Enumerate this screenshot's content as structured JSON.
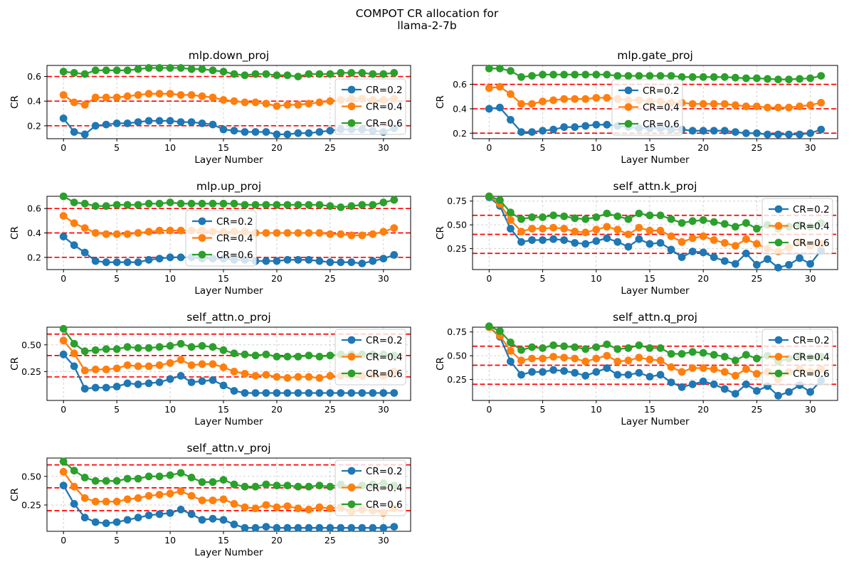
{
  "figure": {
    "title_line1": "COMPOT CR allocation for",
    "title_line2": "llama-2-7b"
  },
  "chart_data": {
    "type": "line",
    "shared": {
      "xlabel": "Layer Number",
      "ylabel": "CR",
      "x_start": 0,
      "x_end": 31,
      "xticks": [
        0,
        5,
        10,
        15,
        20,
        25,
        30
      ],
      "xlim": [
        -1.55,
        32.55
      ],
      "threshold_lines": [
        0.2,
        0.4,
        0.6
      ],
      "threshold_color": "#ff0000",
      "grid_color": "#c9c9c9",
      "grid_on": true,
      "legend_labels": [
        "CR=0.2",
        "CR=0.4",
        "CR=0.6"
      ],
      "series_colors": [
        "#1f77b4",
        "#ff7f0e",
        "#2ca02c"
      ]
    },
    "charts": [
      {
        "title": "mlp.down_proj",
        "col": "left",
        "legend_pos": "center-right",
        "ylim": [
          0.095,
          0.69
        ],
        "ytick_values": [
          0.2,
          0.4,
          0.6
        ],
        "ytick_labels": [
          "0.2",
          "0.4",
          "0.6"
        ],
        "series": [
          {
            "name": "CR=0.2",
            "color": "#1f77b4",
            "values": [
              0.26,
              0.15,
              0.13,
              0.2,
              0.21,
              0.22,
              0.22,
              0.23,
              0.24,
              0.24,
              0.24,
              0.23,
              0.23,
              0.22,
              0.21,
              0.17,
              0.16,
              0.15,
              0.15,
              0.15,
              0.13,
              0.13,
              0.14,
              0.14,
              0.15,
              0.16,
              0.17,
              0.17,
              0.17,
              0.16,
              0.15,
              0.18
            ]
          },
          {
            "name": "CR=0.4",
            "color": "#ff7f0e",
            "values": [
              0.45,
              0.39,
              0.37,
              0.43,
              0.43,
              0.43,
              0.44,
              0.45,
              0.46,
              0.46,
              0.46,
              0.45,
              0.45,
              0.44,
              0.43,
              0.41,
              0.4,
              0.39,
              0.39,
              0.38,
              0.36,
              0.37,
              0.37,
              0.38,
              0.39,
              0.4,
              0.41,
              0.42,
              0.42,
              0.41,
              0.41,
              0.42
            ]
          },
          {
            "name": "CR=0.6",
            "color": "#2ca02c",
            "values": [
              0.64,
              0.63,
              0.62,
              0.65,
              0.65,
              0.65,
              0.65,
              0.66,
              0.67,
              0.67,
              0.67,
              0.67,
              0.66,
              0.66,
              0.65,
              0.64,
              0.62,
              0.61,
              0.62,
              0.62,
              0.61,
              0.61,
              0.6,
              0.62,
              0.62,
              0.62,
              0.63,
              0.63,
              0.63,
              0.62,
              0.62,
              0.63
            ]
          }
        ]
      },
      {
        "title": "mlp.gate_proj",
        "col": "right",
        "legend_pos": "upper-center",
        "ylim": [
          0.155,
          0.755
        ],
        "ytick_values": [
          0.2,
          0.4,
          0.6
        ],
        "ytick_labels": [
          "0.2",
          "0.4",
          "0.6"
        ],
        "series": [
          {
            "name": "CR=0.2",
            "color": "#1f77b4",
            "values": [
              0.4,
              0.41,
              0.31,
              0.21,
              0.21,
              0.22,
              0.23,
              0.25,
              0.25,
              0.26,
              0.27,
              0.27,
              0.26,
              0.25,
              0.24,
              0.24,
              0.24,
              0.23,
              0.23,
              0.22,
              0.22,
              0.22,
              0.22,
              0.21,
              0.2,
              0.2,
              0.19,
              0.19,
              0.19,
              0.19,
              0.2,
              0.23
            ]
          },
          {
            "name": "CR=0.4",
            "color": "#ff7f0e",
            "values": [
              0.57,
              0.58,
              0.52,
              0.44,
              0.44,
              0.46,
              0.47,
              0.48,
              0.48,
              0.48,
              0.49,
              0.49,
              0.48,
              0.47,
              0.47,
              0.46,
              0.46,
              0.45,
              0.45,
              0.44,
              0.44,
              0.44,
              0.44,
              0.43,
              0.42,
              0.42,
              0.41,
              0.41,
              0.41,
              0.42,
              0.43,
              0.45
            ]
          },
          {
            "name": "CR=0.6",
            "color": "#2ca02c",
            "values": [
              0.73,
              0.73,
              0.71,
              0.66,
              0.67,
              0.68,
              0.68,
              0.68,
              0.68,
              0.68,
              0.68,
              0.68,
              0.67,
              0.67,
              0.67,
              0.67,
              0.67,
              0.67,
              0.66,
              0.66,
              0.66,
              0.66,
              0.66,
              0.655,
              0.65,
              0.65,
              0.645,
              0.64,
              0.64,
              0.645,
              0.65,
              0.67
            ]
          }
        ]
      },
      {
        "title": "mlp.up_proj",
        "col": "left",
        "legend_pos": "upper-center",
        "ylim": [
          0.1,
          0.7
        ],
        "ytick_values": [
          0.2,
          0.4,
          0.6
        ],
        "ytick_labels": [
          "0.2",
          "0.4",
          "0.6"
        ],
        "series": [
          {
            "name": "CR=0.2",
            "color": "#1f77b4",
            "values": [
              0.37,
              0.3,
              0.24,
              0.17,
              0.16,
              0.16,
              0.16,
              0.16,
              0.18,
              0.19,
              0.2,
              0.2,
              0.2,
              0.19,
              0.19,
              0.19,
              0.18,
              0.18,
              0.17,
              0.17,
              0.17,
              0.18,
              0.18,
              0.18,
              0.17,
              0.16,
              0.16,
              0.16,
              0.15,
              0.17,
              0.19,
              0.22
            ]
          },
          {
            "name": "CR=0.4",
            "color": "#ff7f0e",
            "values": [
              0.54,
              0.48,
              0.44,
              0.4,
              0.39,
              0.39,
              0.39,
              0.4,
              0.41,
              0.42,
              0.42,
              0.42,
              0.42,
              0.42,
              0.41,
              0.41,
              0.41,
              0.41,
              0.4,
              0.4,
              0.4,
              0.4,
              0.4,
              0.4,
              0.4,
              0.39,
              0.39,
              0.38,
              0.38,
              0.39,
              0.41,
              0.44
            ]
          },
          {
            "name": "CR=0.6",
            "color": "#2ca02c",
            "values": [
              0.7,
              0.65,
              0.64,
              0.62,
              0.62,
              0.63,
              0.63,
              0.63,
              0.64,
              0.64,
              0.65,
              0.64,
              0.64,
              0.64,
              0.64,
              0.64,
              0.64,
              0.63,
              0.63,
              0.63,
              0.63,
              0.63,
              0.63,
              0.63,
              0.63,
              0.62,
              0.61,
              0.62,
              0.63,
              0.63,
              0.65,
              0.67
            ]
          }
        ]
      },
      {
        "title": "self_attn.k_proj",
        "col": "right",
        "legend_pos": "upper-right",
        "ylim": [
          0.03,
          0.8
        ],
        "ytick_values": [
          0.25,
          0.5,
          0.75
        ],
        "ytick_labels": [
          "0.25",
          "0.50",
          "0.75"
        ],
        "series": [
          {
            "name": "CR=0.2",
            "color": "#1f77b4",
            "values": [
              0.79,
              0.7,
              0.46,
              0.32,
              0.34,
              0.34,
              0.35,
              0.34,
              0.31,
              0.3,
              0.33,
              0.36,
              0.32,
              0.27,
              0.35,
              0.3,
              0.31,
              0.24,
              0.16,
              0.22,
              0.21,
              0.16,
              0.12,
              0.09,
              0.2,
              0.08,
              0.14,
              0.05,
              0.08,
              0.15,
              0.09,
              0.23
            ]
          },
          {
            "name": "CR=0.4",
            "color": "#ff7f0e",
            "values": [
              0.8,
              0.72,
              0.55,
              0.43,
              0.46,
              0.46,
              0.47,
              0.46,
              0.43,
              0.42,
              0.45,
              0.48,
              0.45,
              0.4,
              0.47,
              0.44,
              0.44,
              0.38,
              0.32,
              0.36,
              0.38,
              0.34,
              0.31,
              0.28,
              0.35,
              0.3,
              0.25,
              0.22,
              0.26,
              0.32,
              0.28,
              0.3
            ]
          },
          {
            "name": "CR=0.6",
            "color": "#2ca02c",
            "values": [
              0.8,
              0.76,
              0.63,
              0.56,
              0.58,
              0.58,
              0.6,
              0.59,
              0.57,
              0.56,
              0.58,
              0.62,
              0.59,
              0.56,
              0.62,
              0.6,
              0.6,
              0.56,
              0.52,
              0.54,
              0.55,
              0.53,
              0.51,
              0.48,
              0.52,
              0.46,
              0.5,
              0.46,
              0.48,
              0.5,
              0.48,
              0.52
            ]
          }
        ]
      },
      {
        "title": "self_attn.o_proj",
        "col": "left",
        "legend_pos": "upper-right",
        "ylim": [
          -0.02,
          0.665
        ],
        "ytick_values": [
          0.25,
          0.5
        ],
        "ytick_labels": [
          "0.25",
          "0.50"
        ],
        "series": [
          {
            "name": "CR=0.2",
            "color": "#1f77b4",
            "values": [
              0.41,
              0.3,
              0.09,
              0.1,
              0.1,
              0.11,
              0.14,
              0.13,
              0.14,
              0.15,
              0.18,
              0.21,
              0.15,
              0.16,
              0.17,
              0.12,
              0.07,
              0.05,
              0.05,
              0.05,
              0.05,
              0.05,
              0.05,
              0.05,
              0.05,
              0.05,
              0.05,
              0.05,
              0.05,
              0.05,
              0.05,
              0.05
            ]
          },
          {
            "name": "CR=0.4",
            "color": "#ff7f0e",
            "values": [
              0.54,
              0.42,
              0.26,
              0.27,
              0.27,
              0.28,
              0.31,
              0.3,
              0.3,
              0.31,
              0.33,
              0.36,
              0.31,
              0.32,
              0.32,
              0.29,
              0.25,
              0.23,
              0.21,
              0.22,
              0.2,
              0.19,
              0.2,
              0.2,
              0.19,
              0.21,
              0.21,
              0.21,
              0.21,
              0.22,
              0.21,
              0.25
            ]
          },
          {
            "name": "CR=0.6",
            "color": "#2ca02c",
            "values": [
              0.65,
              0.51,
              0.44,
              0.45,
              0.46,
              0.46,
              0.48,
              0.47,
              0.47,
              0.48,
              0.49,
              0.51,
              0.48,
              0.49,
              0.48,
              0.45,
              0.42,
              0.41,
              0.4,
              0.41,
              0.39,
              0.39,
              0.39,
              0.4,
              0.39,
              0.4,
              0.41,
              0.41,
              0.41,
              0.41,
              0.41,
              0.4
            ]
          }
        ]
      },
      {
        "title": "self_attn.q_proj",
        "col": "right",
        "legend_pos": "upper-right",
        "ylim": [
          0.03,
          0.8
        ],
        "ytick_values": [
          0.25,
          0.5,
          0.75
        ],
        "ytick_labels": [
          "0.25",
          "0.50",
          "0.75"
        ],
        "series": [
          {
            "name": "CR=0.2",
            "color": "#1f77b4",
            "values": [
              0.8,
              0.7,
              0.44,
              0.3,
              0.33,
              0.33,
              0.35,
              0.34,
              0.32,
              0.29,
              0.33,
              0.37,
              0.3,
              0.3,
              0.32,
              0.28,
              0.3,
              0.22,
              0.17,
              0.2,
              0.23,
              0.2,
              0.15,
              0.1,
              0.2,
              0.13,
              0.18,
              0.08,
              0.12,
              0.19,
              0.12,
              0.24
            ]
          },
          {
            "name": "CR=0.4",
            "color": "#ff7f0e",
            "values": [
              0.8,
              0.71,
              0.55,
              0.45,
              0.47,
              0.47,
              0.49,
              0.48,
              0.47,
              0.44,
              0.47,
              0.5,
              0.44,
              0.45,
              0.48,
              0.46,
              0.45,
              0.38,
              0.33,
              0.37,
              0.37,
              0.36,
              0.33,
              0.29,
              0.36,
              0.31,
              0.33,
              0.25,
              0.33,
              0.36,
              0.33,
              0.36
            ]
          },
          {
            "name": "CR=0.6",
            "color": "#2ca02c",
            "values": [
              0.81,
              0.76,
              0.64,
              0.56,
              0.59,
              0.58,
              0.61,
              0.6,
              0.59,
              0.57,
              0.59,
              0.62,
              0.57,
              0.58,
              0.61,
              0.58,
              0.58,
              0.52,
              0.52,
              0.54,
              0.53,
              0.51,
              0.49,
              0.45,
              0.51,
              0.47,
              0.5,
              0.44,
              0.47,
              0.5,
              0.48,
              0.49
            ]
          }
        ]
      },
      {
        "title": "self_attn.v_proj",
        "col": "left",
        "legend_pos": "upper-right",
        "ylim": [
          0.02,
          0.66
        ],
        "ytick_values": [
          0.25,
          0.5
        ],
        "ytick_labels": [
          "0.25",
          "0.50"
        ],
        "series": [
          {
            "name": "CR=0.2",
            "color": "#1f77b4",
            "values": [
              0.42,
              0.26,
              0.14,
              0.1,
              0.09,
              0.1,
              0.12,
              0.14,
              0.16,
              0.17,
              0.18,
              0.21,
              0.17,
              0.12,
              0.13,
              0.12,
              0.08,
              0.05,
              0.05,
              0.06,
              0.05,
              0.05,
              0.05,
              0.05,
              0.05,
              0.05,
              0.05,
              0.05,
              0.05,
              0.05,
              0.05,
              0.06
            ]
          },
          {
            "name": "CR=0.4",
            "color": "#ff7f0e",
            "values": [
              0.54,
              0.41,
              0.31,
              0.28,
              0.28,
              0.28,
              0.3,
              0.31,
              0.33,
              0.34,
              0.35,
              0.37,
              0.33,
              0.29,
              0.29,
              0.3,
              0.26,
              0.23,
              0.22,
              0.25,
              0.23,
              0.24,
              0.22,
              0.21,
              0.23,
              0.22,
              0.23,
              0.19,
              0.21,
              0.2,
              0.18,
              0.22
            ]
          },
          {
            "name": "CR=0.6",
            "color": "#2ca02c",
            "values": [
              0.63,
              0.55,
              0.49,
              0.46,
              0.46,
              0.46,
              0.48,
              0.48,
              0.5,
              0.5,
              0.51,
              0.53,
              0.49,
              0.45,
              0.45,
              0.47,
              0.43,
              0.41,
              0.41,
              0.43,
              0.42,
              0.42,
              0.41,
              0.41,
              0.42,
              0.41,
              0.43,
              0.41,
              0.42,
              0.43,
              0.44,
              0.42
            ]
          }
        ]
      }
    ]
  }
}
